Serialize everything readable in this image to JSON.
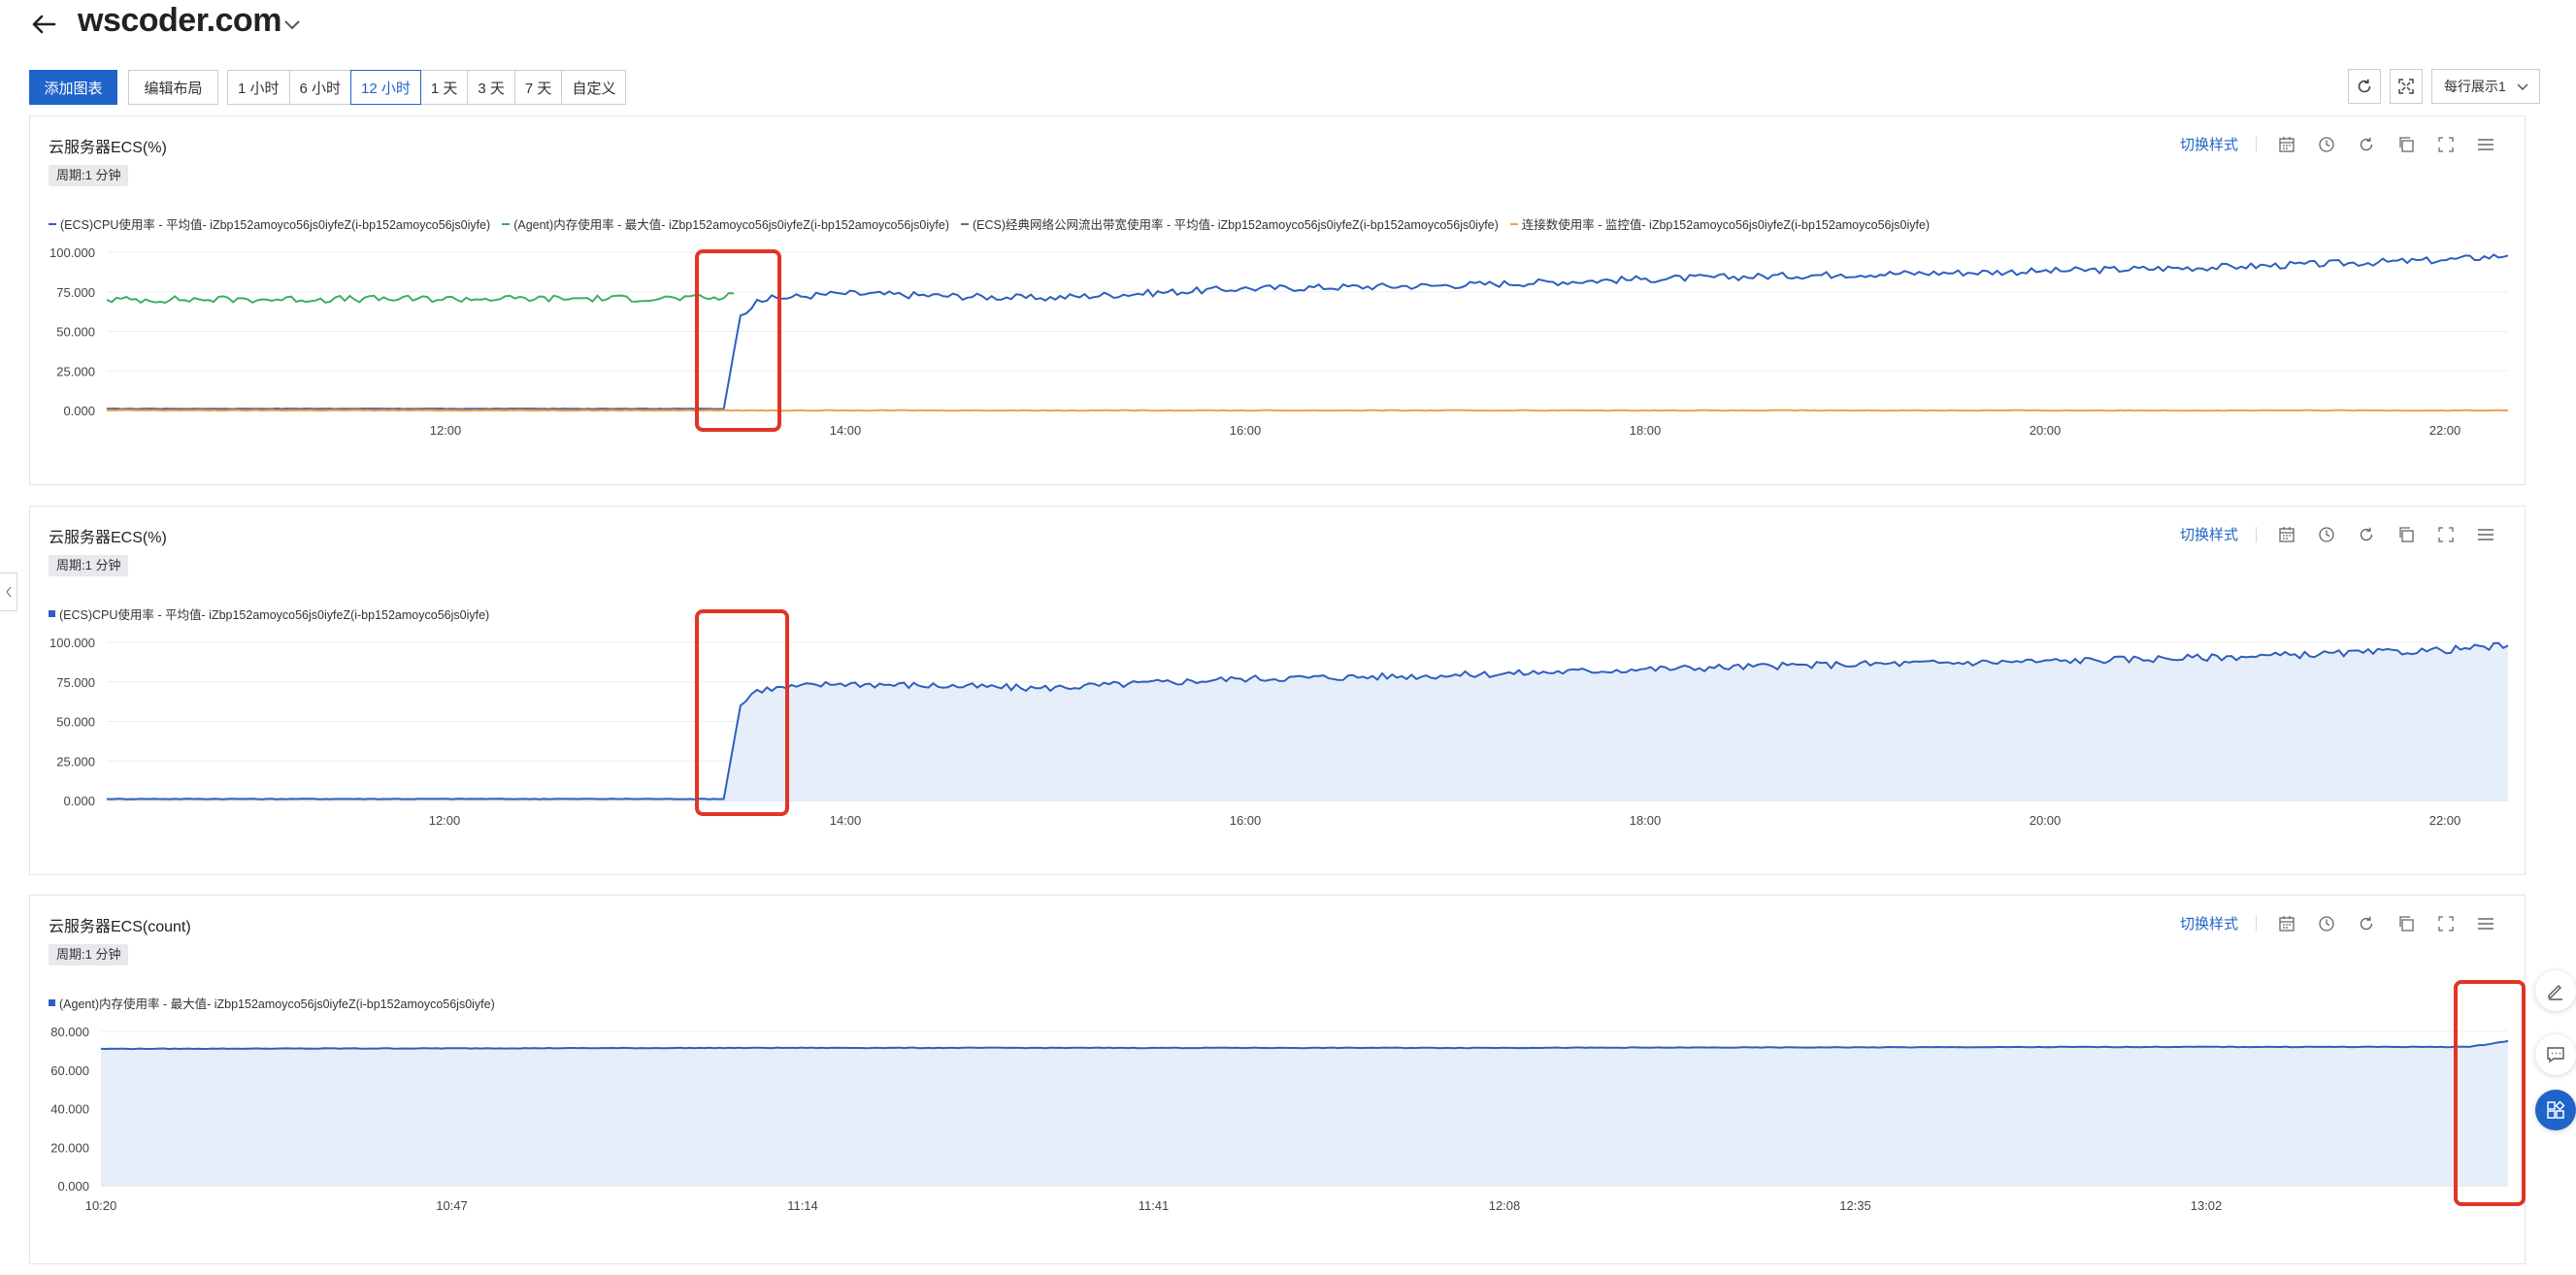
{
  "header": {
    "title": "wscoder.com"
  },
  "toolbar": {
    "add_chart": "添加图表",
    "edit_layout": "编辑布局",
    "ranges": [
      "1 小时",
      "6 小时",
      "12 小时",
      "1 天",
      "3 天",
      "7 天",
      "自定义"
    ],
    "active_range": "12 小时",
    "rows_per_line": "每行展示1"
  },
  "panels": [
    {
      "title": "云服务器ECS(%)",
      "period": "周期:1 分钟",
      "switch_style": "切换样式",
      "legend": [
        {
          "label": "(ECS)CPU使用率 - 平均值- iZbp152amoyco56js0iyfeZ(i-bp152amoyco56js0iyfe)",
          "color": "#2e5fbd"
        },
        {
          "label": "(Agent)内存使用率 - 最大值- iZbp152amoyco56js0iyfeZ(i-bp152amoyco56js0iyfe)",
          "color": "#3fae62"
        },
        {
          "label": "(ECS)经典网络公网流出带宽使用率 - 平均值- iZbp152amoyco56js0iyfeZ(i-bp152amoyco56js0iyfe)",
          "color": "#5c6e8a"
        },
        {
          "label": "连接数使用率 - 监控值- iZbp152amoyco56js0iyfeZ(i-bp152amoyco56js0iyfe)",
          "color": "#f0a055"
        }
      ],
      "chart_data": {
        "type": "line",
        "y_ticks": [
          "100.000",
          "75.000",
          "50.000",
          "25.000",
          "0.000"
        ],
        "x_ticks": [
          "12:00",
          "14:00",
          "16:00",
          "18:00",
          "20:00",
          "22:00"
        ],
        "ylim": [
          0,
          100
        ],
        "series": [
          {
            "name": "(ECS)CPU使用率 - 平均值- iZbp152amoyco56js0iyfeZ(i-bp152amoyco56js0iyfe)",
            "color": "#2e5fbd",
            "x": [
              "10:20",
              "13:25",
              "13:30",
              "13:35",
              "14:00",
              "15:00",
              "16:00",
              "17:00",
              "18:00",
              "19:00",
              "20:00",
              "21:00",
              "22:00",
              "22:20"
            ],
            "values": [
              1,
              1,
              60,
              70,
              74,
              71,
              77,
              79,
              83,
              86,
              88,
              91,
              95,
              98
            ]
          },
          {
            "name": "(Agent)内存使用率 - 最大值- iZbp152amoyco56js0iyfeZ(i-bp152amoyco56js0iyfe)",
            "color": "#3fae62",
            "x": [
              "10:20",
              "13:25",
              "13:28"
            ],
            "values": [
              70,
              71,
              74
            ]
          },
          {
            "name": "(ECS)经典网络公网流出带宽使用率 - 平均值- iZbp152amoyco56js0iyfeZ(i-bp152amoyco56js0iyfe)",
            "color": "#5c6e8a",
            "x": [
              "10:20",
              "13:25"
            ],
            "values": [
              1,
              1
            ]
          },
          {
            "name": "连接数使用率 - 监控值- iZbp152amoyco56js0iyfeZ(i-bp152amoyco56js0iyfe)",
            "color": "#f0a055",
            "x": [
              "10:20",
              "22:20"
            ],
            "values": [
              0,
              0
            ]
          }
        ],
        "grid": true,
        "legend_position": "top-left"
      }
    },
    {
      "title": "云服务器ECS(%)",
      "period": "周期:1 分钟",
      "switch_style": "切换样式",
      "legend": [
        {
          "label": "(ECS)CPU使用率 - 平均值- iZbp152amoyco56js0iyfeZ(i-bp152amoyco56js0iyfe)",
          "color": "#2e5fbd"
        }
      ],
      "chart_data": {
        "type": "area",
        "y_ticks": [
          "100.000",
          "75.000",
          "50.000",
          "25.000",
          "0.000"
        ],
        "x_ticks": [
          "12:00",
          "14:00",
          "16:00",
          "18:00",
          "20:00",
          "22:00"
        ],
        "ylim": [
          0,
          100
        ],
        "series": [
          {
            "name": "(ECS)CPU使用率 - 平均值- iZbp152amoyco56js0iyfeZ(i-bp152amoyco56js0iyfe)",
            "color": "#2e5fbd",
            "x": [
              "10:20",
              "13:25",
              "13:30",
              "13:35",
              "14:00",
              "15:00",
              "16:00",
              "17:00",
              "18:00",
              "19:00",
              "20:00",
              "21:00",
              "22:00",
              "22:20"
            ],
            "values": [
              1,
              1,
              60,
              70,
              74,
              71,
              77,
              79,
              83,
              86,
              88,
              91,
              95,
              98
            ]
          }
        ],
        "grid": true,
        "legend_position": "top-left"
      }
    },
    {
      "title": "云服务器ECS(count)",
      "period": "周期:1 分钟",
      "switch_style": "切换样式",
      "legend": [
        {
          "label": "(Agent)内存使用率 - 最大值- iZbp152amoyco56js0iyfeZ(i-bp152amoyco56js0iyfe)",
          "color": "#2e5fbd"
        }
      ],
      "chart_data": {
        "type": "area",
        "y_ticks": [
          "80.000",
          "60.000",
          "40.000",
          "20.000",
          "0.000"
        ],
        "x_ticks": [
          "10:20",
          "10:47",
          "11:14",
          "11:41",
          "12:08",
          "12:35",
          "13:02"
        ],
        "ylim": [
          0,
          80
        ],
        "series": [
          {
            "name": "(Agent)内存使用率 - 最大值- iZbp152amoyco56js0iyfeZ(i-bp152amoyco56js0iyfe)",
            "color": "#2e5fbd",
            "x": [
              "10:20",
              "11:14",
              "12:08",
              "13:02",
              "13:25",
              "13:28"
            ],
            "values": [
              71,
              71.5,
              71.5,
              72,
              72,
              75
            ]
          }
        ],
        "grid": true,
        "legend_position": "top-left"
      }
    }
  ]
}
